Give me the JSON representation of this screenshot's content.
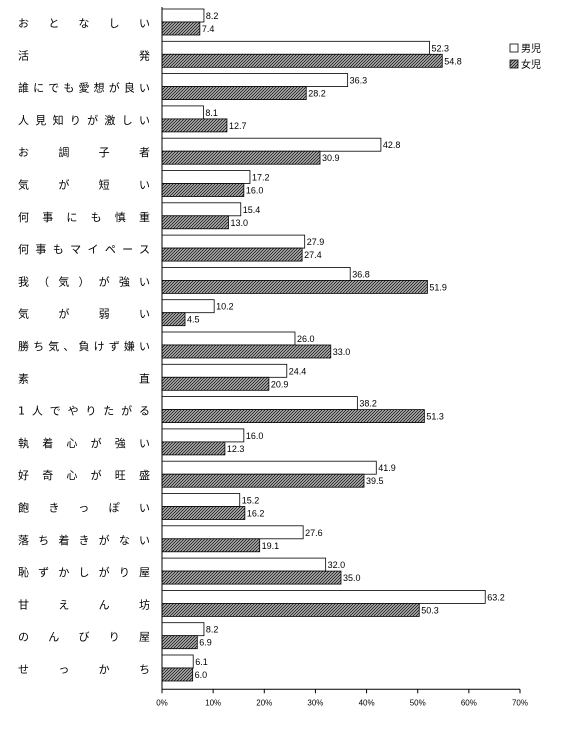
{
  "chart_data": {
    "type": "bar",
    "orientation": "horizontal",
    "categories": [
      "おとなしい",
      "活発",
      "誰にでも愛想が良い",
      "人見知りが激しい",
      "お調子者",
      "気が短い",
      "何事にも慎重",
      "何事もマイペース",
      "我（気）が強い",
      "気が弱い",
      "勝ち気、負けず嫌い",
      "素直",
      "1人でやりたがる",
      "執着心が強い",
      "好奇心が旺盛",
      "飽きっぽい",
      "落ち着きがない",
      "恥ずかしがり屋",
      "甘えん坊",
      "のんびり屋",
      "せっかち"
    ],
    "series": [
      {
        "name": "男児",
        "pattern": "white",
        "values": [
          8.2,
          52.3,
          36.3,
          8.1,
          42.8,
          17.2,
          15.4,
          27.9,
          36.8,
          10.2,
          26.0,
          24.4,
          38.2,
          16.0,
          41.9,
          15.2,
          27.6,
          32.0,
          63.2,
          8.2,
          6.1
        ],
        "value_labels": [
          "8.2",
          "52.3",
          "36.3",
          "8.1",
          "42.8",
          "17.2",
          "15.4",
          "27.9",
          "36.8",
          "10.2",
          "26.0",
          "24.4",
          "38.2",
          "16.0",
          "41.9",
          "15.2",
          "27.6",
          "32.0",
          "63.2",
          "8.2",
          "6.1"
        ]
      },
      {
        "name": "女児",
        "pattern": "hatched",
        "values": [
          7.4,
          54.8,
          28.2,
          12.7,
          30.9,
          16.0,
          13.0,
          27.4,
          51.9,
          4.5,
          33.0,
          20.9,
          51.3,
          12.3,
          39.5,
          16.2,
          19.1,
          35.0,
          50.3,
          6.9,
          6.0
        ],
        "value_labels": [
          "7.4",
          "54.8",
          "28.2",
          "12.7",
          "30.9",
          "16.0",
          "13.0",
          "27.4",
          "51.9",
          "4.5",
          "33.0",
          "20.9",
          "51.3",
          "12.3",
          "39.5",
          "16.2",
          "19.1",
          "35.0",
          "50.3",
          "6.9",
          "6.0"
        ]
      }
    ],
    "xlim": [
      0,
      70
    ],
    "xticks": [
      "0%",
      "10%",
      "20%",
      "30%",
      "40%",
      "50%",
      "60%",
      "70%"
    ],
    "grid": false,
    "legend_position": "top-right",
    "colors": {
      "bar_border": "#000000",
      "bar_fill_boys": "#ffffff",
      "bar_fill_girls_base": "#c8c8c8",
      "bar_fill_girls_hatch": "#222222"
    }
  }
}
